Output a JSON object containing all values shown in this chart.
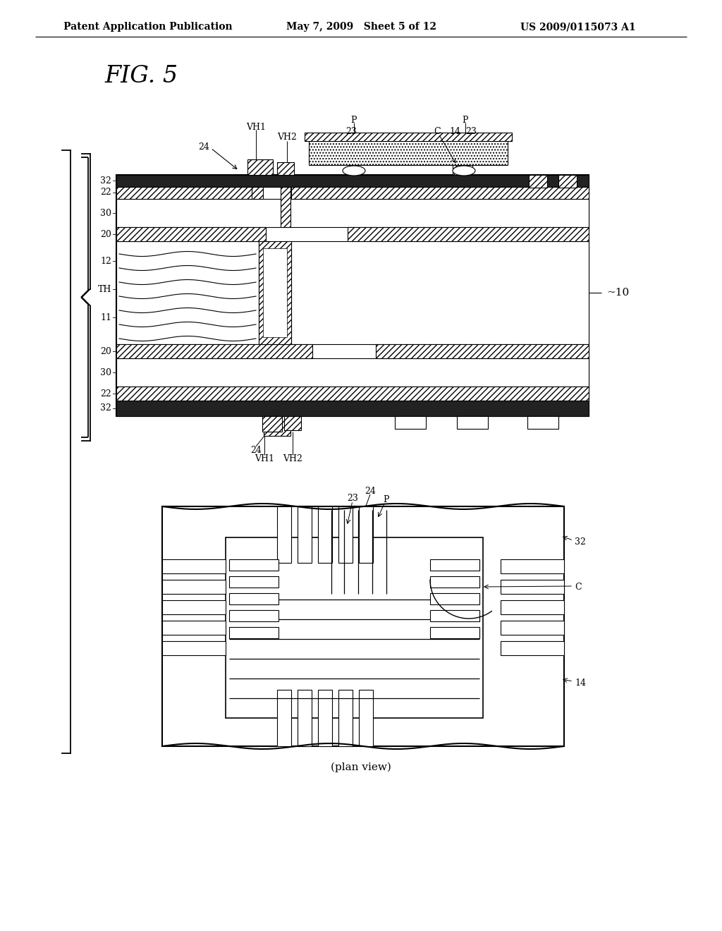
{
  "header_left": "Patent Application Publication",
  "header_mid": "May 7, 2009   Sheet 5 of 12",
  "header_right": "US 2009/0115073 A1",
  "fig_label": "FIG. 5",
  "plan_label": "(plan view)",
  "bg": "#ffffff",
  "dark": "#222222"
}
